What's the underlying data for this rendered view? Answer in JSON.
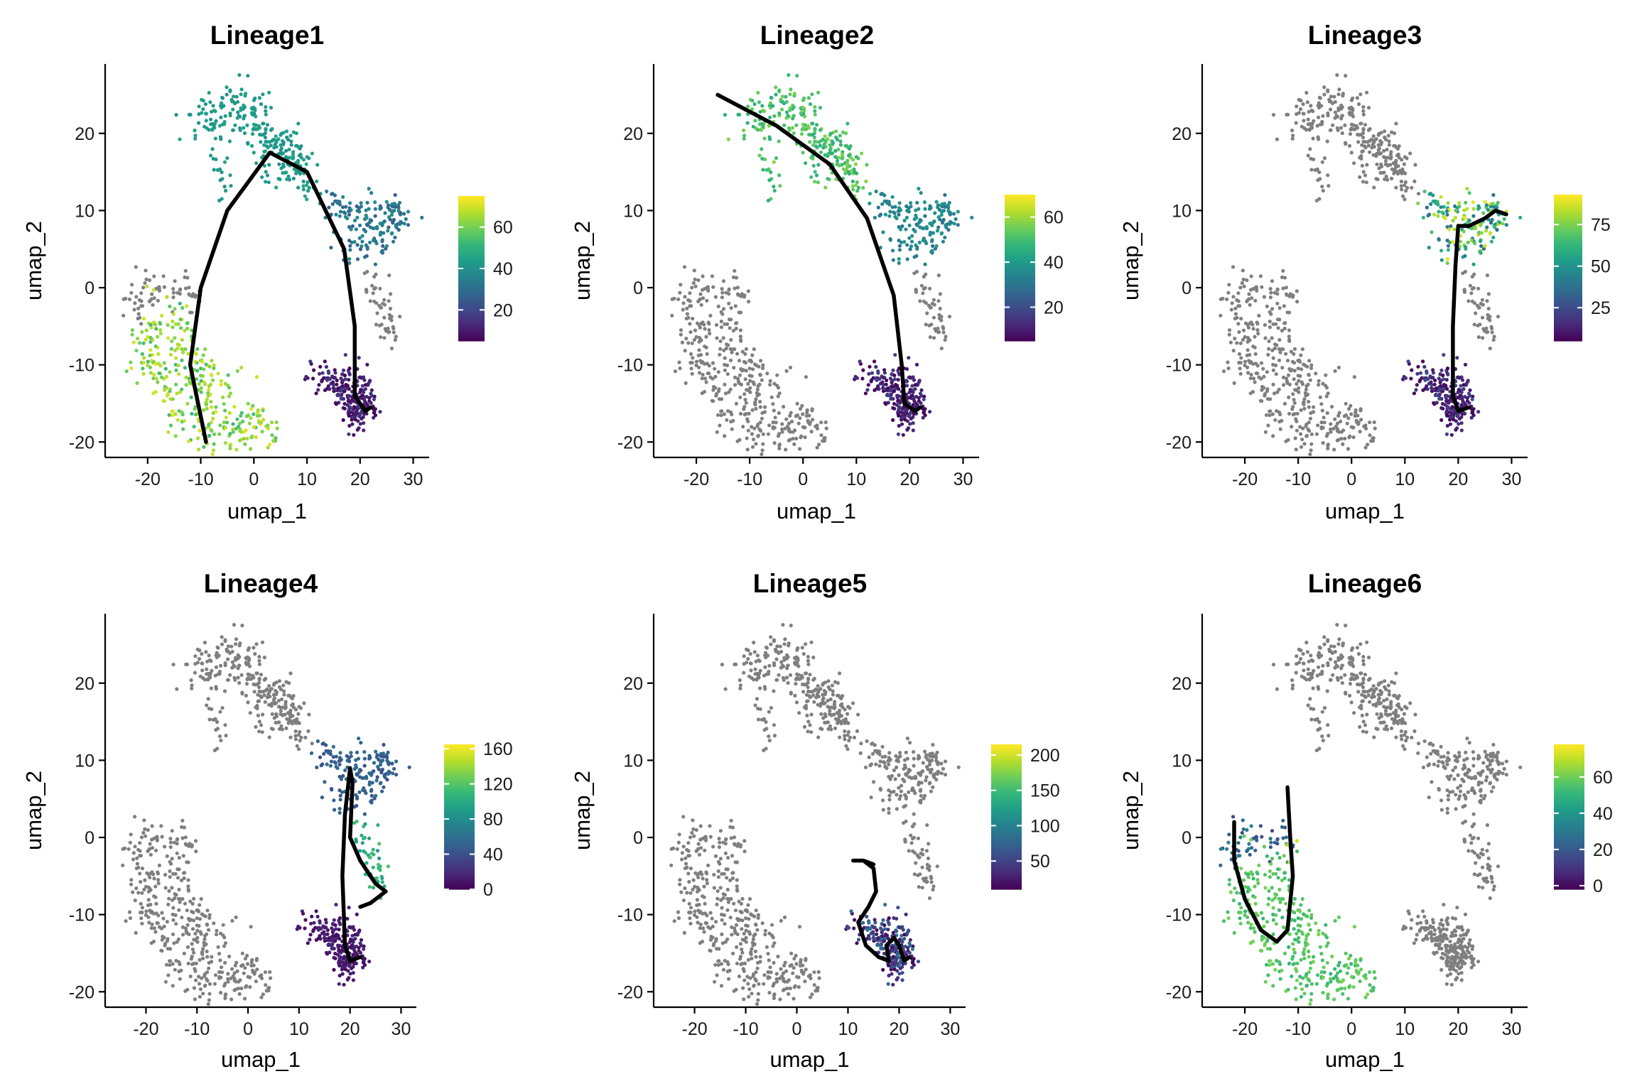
{
  "chart_data": [
    {
      "type": "scatter",
      "title": "Lineage1",
      "xlabel": "umap_1",
      "ylabel": "umap_2",
      "xlim": [
        -28,
        33
      ],
      "ylim": [
        -22,
        29
      ],
      "xticks": [
        -20,
        -10,
        0,
        10,
        20,
        30
      ],
      "yticks": [
        -20,
        -10,
        0,
        10,
        20
      ],
      "colorbar": {
        "min": 5,
        "max": 75,
        "ticks": [
          20,
          40,
          60
        ]
      },
      "colored_regions": {
        "left_arm": [
          52,
          72
        ],
        "top_blob": [
          40,
          46
        ],
        "right_upper": [
          25,
          40
        ],
        "bottom_right": [
          5,
          18
        ]
      },
      "curve": [
        [
          -9,
          -20
        ],
        [
          -12,
          -10
        ],
        [
          -10,
          0
        ],
        [
          -5,
          10
        ],
        [
          3,
          17.5
        ],
        [
          10,
          15
        ],
        [
          17,
          5
        ],
        [
          19,
          -5
        ],
        [
          19,
          -14
        ],
        [
          21,
          -16
        ],
        [
          22,
          -15.5
        ]
      ]
    },
    {
      "type": "scatter",
      "title": "Lineage2",
      "xlabel": "umap_1",
      "ylabel": "umap_2",
      "xlim": [
        -28,
        33
      ],
      "ylim": [
        -22,
        29
      ],
      "xticks": [
        -20,
        -10,
        0,
        10,
        20,
        30
      ],
      "yticks": [
        -20,
        -10,
        0,
        10,
        20
      ],
      "colorbar": {
        "min": 5,
        "max": 70,
        "ticks": [
          20,
          40,
          60
        ]
      },
      "colored_regions": {
        "top_blob": [
          45,
          58
        ],
        "right_upper": [
          30,
          40
        ],
        "bottom_right": [
          5,
          18
        ]
      },
      "curve": [
        [
          -16,
          25
        ],
        [
          -5,
          21
        ],
        [
          5,
          16
        ],
        [
          12,
          9
        ],
        [
          17,
          -1
        ],
        [
          18.5,
          -10
        ],
        [
          19,
          -15
        ],
        [
          21,
          -16
        ],
        [
          22,
          -15.5
        ]
      ]
    },
    {
      "type": "scatter",
      "title": "Lineage3",
      "xlabel": "umap_1",
      "ylabel": "umap_2",
      "xlim": [
        -28,
        33
      ],
      "ylim": [
        -22,
        29
      ],
      "xticks": [
        -20,
        -10,
        0,
        10,
        20,
        30
      ],
      "yticks": [
        -20,
        -10,
        0,
        10,
        20
      ],
      "colorbar": {
        "min": 5,
        "max": 93,
        "ticks": [
          25,
          50,
          75
        ]
      },
      "colored_regions": {
        "right_upper": [
          35,
          92
        ],
        "bottom_right": [
          5,
          25
        ]
      },
      "curve": [
        [
          22,
          -15.5
        ],
        [
          20,
          -16
        ],
        [
          19,
          -14
        ],
        [
          19,
          -5
        ],
        [
          19.5,
          3
        ],
        [
          20,
          8
        ],
        [
          22,
          8
        ],
        [
          25,
          9
        ],
        [
          27,
          10
        ],
        [
          29,
          9.5
        ]
      ]
    },
    {
      "type": "scatter",
      "title": "Lineage4",
      "xlabel": "umap_1",
      "ylabel": "umap_2",
      "xlim": [
        -28,
        33
      ],
      "ylim": [
        -22,
        29
      ],
      "xticks": [
        -20,
        -10,
        0,
        10,
        20,
        30
      ],
      "yticks": [
        -20,
        -10,
        0,
        10,
        20
      ],
      "colorbar": {
        "min": 0,
        "max": 165,
        "ticks": [
          0,
          40,
          80,
          120,
          160
        ]
      },
      "colored_regions": {
        "right_upper": [
          40,
          60
        ],
        "right_arm": [
          90,
          120
        ],
        "bottom_right": [
          5,
          20
        ]
      },
      "curve": [
        [
          22,
          -15.5
        ],
        [
          20,
          -16
        ],
        [
          19,
          -14
        ],
        [
          18.5,
          -5
        ],
        [
          19,
          3
        ],
        [
          20,
          9
        ],
        [
          20.5,
          7
        ],
        [
          20,
          0
        ],
        [
          22,
          -3
        ],
        [
          25,
          -6
        ],
        [
          27,
          -7
        ],
        [
          24,
          -8.5
        ],
        [
          22,
          -9
        ]
      ]
    },
    {
      "type": "scatter",
      "title": "Lineage5",
      "xlabel": "umap_1",
      "ylabel": "umap_2",
      "xlim": [
        -28,
        33
      ],
      "ylim": [
        -22,
        29
      ],
      "xticks": [
        -20,
        -10,
        0,
        10,
        20,
        30
      ],
      "yticks": [
        -20,
        -10,
        0,
        10,
        20
      ],
      "colorbar": {
        "min": 10,
        "max": 215,
        "ticks": [
          50,
          100,
          150,
          200
        ]
      },
      "colored_regions": {
        "bottom_right": [
          10,
          90
        ]
      },
      "curve": [
        [
          22,
          -15.5
        ],
        [
          21,
          -16
        ],
        [
          20,
          -14
        ],
        [
          19,
          -13
        ],
        [
          17.5,
          -14
        ],
        [
          18,
          -16
        ],
        [
          16,
          -15.5
        ],
        [
          13.5,
          -14
        ],
        [
          12,
          -11
        ],
        [
          14,
          -9
        ],
        [
          15.5,
          -7
        ],
        [
          15,
          -4
        ],
        [
          13,
          -3
        ],
        [
          11,
          -3
        ],
        [
          13,
          -3
        ],
        [
          15,
          -3.5
        ]
      ]
    },
    {
      "type": "scatter",
      "title": "Lineage6",
      "xlabel": "umap_1",
      "ylabel": "umap_2",
      "xlim": [
        -28,
        33
      ],
      "ylim": [
        -22,
        29
      ],
      "xticks": [
        -20,
        -10,
        0,
        10,
        20,
        30
      ],
      "yticks": [
        -20,
        -10,
        0,
        10,
        20
      ],
      "colorbar": {
        "min": -2,
        "max": 78,
        "ticks": [
          0,
          20,
          40,
          60
        ]
      },
      "colored_regions": {
        "left_arm": [
          50,
          62
        ],
        "left_upper": [
          15,
          35
        ],
        "inner_top": [
          65,
          75
        ]
      },
      "curve": [
        [
          -22,
          2
        ],
        [
          -22,
          -3
        ],
        [
          -20,
          -8
        ],
        [
          -17,
          -12
        ],
        [
          -14,
          -13.5
        ],
        [
          -12,
          -12
        ],
        [
          -11,
          -5
        ],
        [
          -11.5,
          0
        ],
        [
          -12,
          6.5
        ]
      ]
    }
  ]
}
